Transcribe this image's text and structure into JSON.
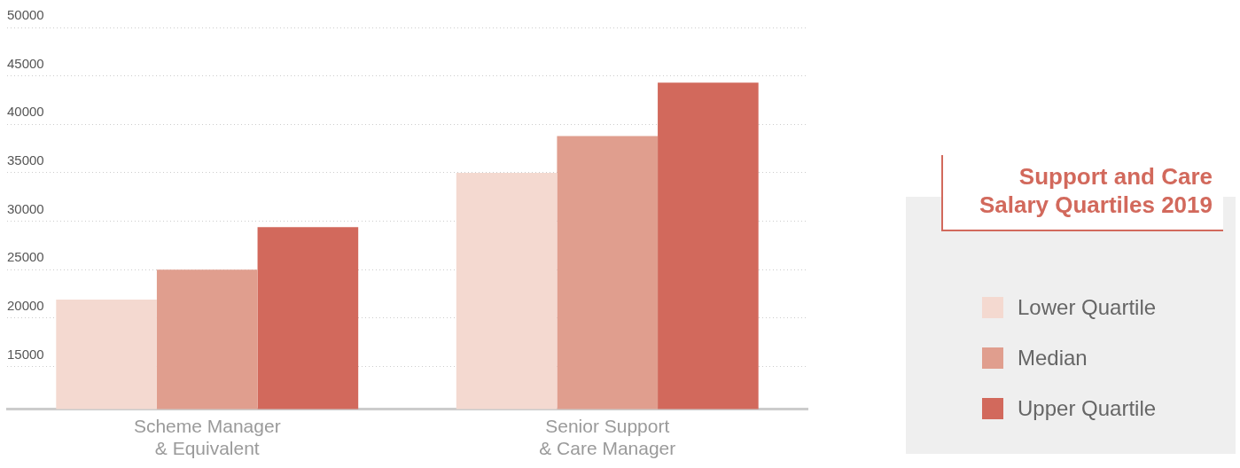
{
  "chart_data": {
    "type": "bar",
    "title": "Support and Care\nSalary Quartiles 2019",
    "categories": [
      "Scheme Manager\n& Equivalent",
      "Senior Support\n& Care Manager"
    ],
    "series": [
      {
        "name": "Lower Quartile",
        "color": "#f4d9d0",
        "values": [
          21900,
          35000
        ]
      },
      {
        "name": "Median",
        "color": "#e09e8e",
        "values": [
          25000,
          38800
        ]
      },
      {
        "name": "Upper Quartile",
        "color": "#d2695c",
        "values": [
          29400,
          44300
        ]
      }
    ],
    "ylim": [
      10600,
      50000
    ],
    "yticks": [
      15000,
      20000,
      25000,
      30000,
      35000,
      40000,
      45000,
      50000
    ],
    "grid": "y",
    "legend": "right"
  }
}
